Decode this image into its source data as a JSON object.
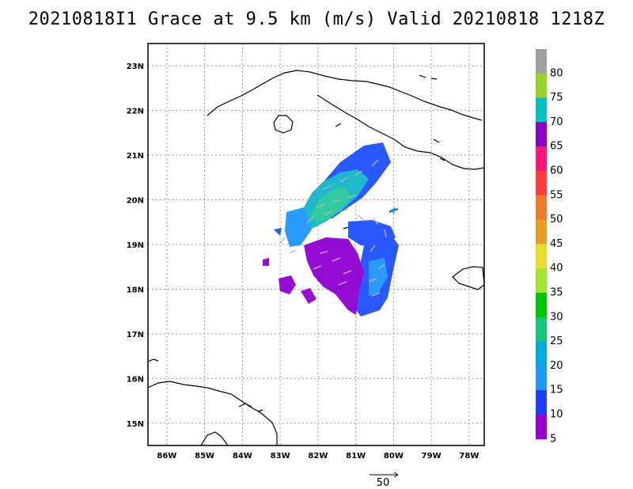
{
  "title": "20210818I1 Grace at 9.5 km (m/s) Valid 20210818 1218Z",
  "map": {
    "lat_ticks": [
      "23N",
      "22N",
      "21N",
      "20N",
      "19N",
      "18N",
      "17N",
      "16N",
      "15N"
    ],
    "lon_ticks": [
      "86W",
      "85W",
      "84W",
      "83W",
      "82W",
      "81W",
      "80W",
      "79W",
      "78W"
    ],
    "grid": "dotted",
    "lon_range": [
      -86.5,
      -77.6
    ],
    "lat_range": [
      14.5,
      23.5
    ]
  },
  "colorbar": {
    "labels": [
      "80",
      "75",
      "70",
      "65",
      "60",
      "55",
      "50",
      "45",
      "40",
      "35",
      "30",
      "25",
      "20",
      "15",
      "10",
      "5"
    ],
    "colors": [
      "#a0a0a0",
      "#96d22d",
      "#00c0c0",
      "#8c00c8",
      "#ff1478",
      "#ff3c3c",
      "#f07828",
      "#e6a028",
      "#e6dc32",
      "#a0e632",
      "#00c800",
      "#14c878",
      "#00aadc",
      "#1e96ff",
      "#1e3cff",
      "#9600d2"
    ]
  },
  "wind_key": {
    "label": "50",
    "units": "m/s"
  }
}
